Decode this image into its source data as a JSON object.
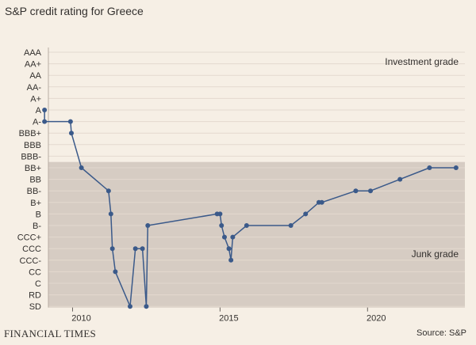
{
  "title": "S&P credit rating for Greece",
  "source": "Source: S&P",
  "publisher": "FINANCIAL TIMES",
  "colors": {
    "background": "#f6efe5",
    "junk_band": "#d6ccc3",
    "line": "#3b5a8a",
    "grid": "#e3d9cf"
  },
  "chart_data": {
    "type": "line",
    "title": "S&P credit rating for Greece",
    "ratings": [
      "AAA",
      "AA+",
      "AA",
      "AA-",
      "A+",
      "A",
      "A-",
      "BBB+",
      "BBB",
      "BBB-",
      "BB+",
      "BB",
      "BB-",
      "B+",
      "B",
      "B-",
      "CCC+",
      "CCC",
      "CCC-",
      "CC",
      "C",
      "RD",
      "SD"
    ],
    "x_ticks": [
      "2010",
      "2015",
      "2020"
    ],
    "xlim": [
      2009.1,
      2023.3
    ],
    "grid": true,
    "annotations": [
      {
        "text": "Investment grade",
        "region": "top-right"
      },
      {
        "text": "Junk grade",
        "region": "bottom-right"
      }
    ],
    "junk_band": {
      "from": "BB+",
      "to": "SD"
    },
    "series": [
      {
        "points": [
          [
            "2009.05",
            "A"
          ],
          [
            "2009.05",
            "A-"
          ],
          [
            "2009.93",
            "A-"
          ],
          [
            "2009.96",
            "BBB+"
          ],
          [
            "2010.3",
            "BB+"
          ],
          [
            "2011.22",
            "BB-"
          ],
          [
            "2011.3",
            "B"
          ],
          [
            "2011.35",
            "CCC"
          ],
          [
            "2011.45",
            "CC"
          ],
          [
            "2011.95",
            "SD"
          ],
          [
            "2012.13",
            "CCC"
          ],
          [
            "2012.37",
            "CCC"
          ],
          [
            "2012.5",
            "SD"
          ],
          [
            "2012.55",
            "B-"
          ],
          [
            "2014.9",
            "B"
          ],
          [
            "2015.0",
            "B"
          ],
          [
            "2015.05",
            "B-"
          ],
          [
            "2015.15",
            "CCC+"
          ],
          [
            "2015.3",
            "CCC"
          ],
          [
            "2015.37",
            "CCC-"
          ],
          [
            "2015.43",
            "CCC+"
          ],
          [
            "2015.9",
            "B-"
          ],
          [
            "2017.4",
            "B-"
          ],
          [
            "2017.9",
            "B"
          ],
          [
            "2018.35",
            "B+"
          ],
          [
            "2018.45",
            "B+"
          ],
          [
            "2019.6",
            "BB-"
          ],
          [
            "2020.1",
            "BB-"
          ],
          [
            "2021.1",
            "BB"
          ],
          [
            "2022.1",
            "BB+"
          ],
          [
            "2023.0",
            "BB+"
          ]
        ]
      }
    ]
  }
}
